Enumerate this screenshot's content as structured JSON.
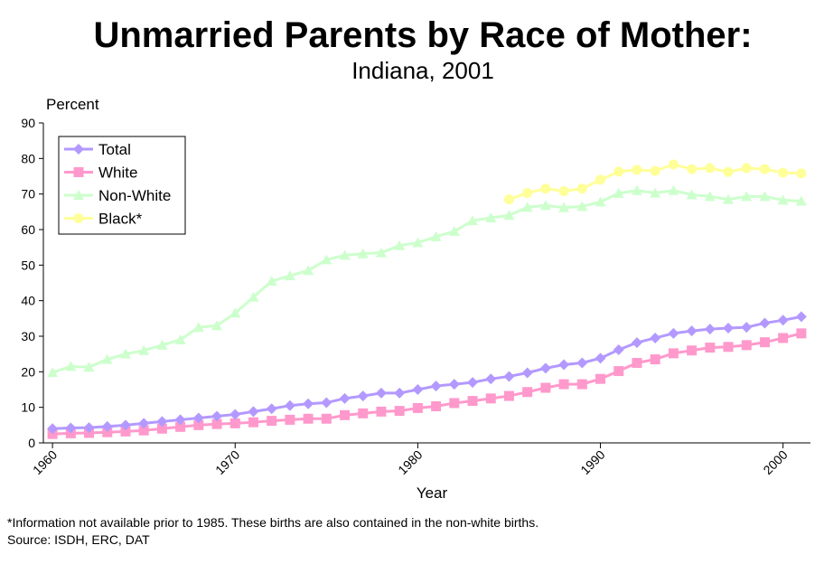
{
  "chart_data": {
    "type": "line",
    "title": "Unmarried Parents by Race of Mother:",
    "subtitle": "Indiana, 2001",
    "y_label": "Percent",
    "x_label": "Year",
    "footnotes": [
      "*Information not available prior to 1985.  These births are also contained in the non-white births.",
      "Source:  ISDH, ERC, DAT"
    ],
    "x": [
      1960,
      1961,
      1962,
      1963,
      1964,
      1965,
      1966,
      1967,
      1968,
      1969,
      1970,
      1971,
      1972,
      1973,
      1974,
      1975,
      1976,
      1977,
      1978,
      1979,
      1980,
      1981,
      1982,
      1983,
      1984,
      1985,
      1986,
      1987,
      1988,
      1989,
      1990,
      1991,
      1992,
      1993,
      1994,
      1995,
      1996,
      1997,
      1998,
      1999,
      2000,
      2001
    ],
    "xlim": [
      1959.5,
      2001.5
    ],
    "xticks": [
      1960,
      1970,
      1980,
      1990,
      2000
    ],
    "ylim": [
      0,
      90
    ],
    "yticks": [
      0,
      10,
      20,
      30,
      40,
      50,
      60,
      70,
      80,
      90
    ],
    "legend": "top-left",
    "series": [
      {
        "name": "Total",
        "color": "#b399ff",
        "marker": "diamond",
        "values": [
          4,
          4.2,
          4.3,
          4.6,
          5,
          5.5,
          6,
          6.5,
          7,
          7.5,
          8,
          8.8,
          9.6,
          10.5,
          11,
          11.3,
          12.5,
          13.2,
          14,
          14,
          15,
          16,
          16.5,
          17,
          18,
          18.7,
          19.7,
          21,
          22,
          22.5,
          23.8,
          26.2,
          28.2,
          29.5,
          30.8,
          31.5,
          32,
          32.3,
          32.5,
          33.7,
          34.5,
          35.5
        ]
      },
      {
        "name": "White",
        "color": "#ff99cc",
        "marker": "square",
        "values": [
          2.5,
          2.7,
          2.8,
          3,
          3.2,
          3.5,
          4,
          4.5,
          5,
          5.3,
          5.5,
          5.8,
          6.2,
          6.5,
          6.8,
          6.8,
          7.8,
          8.3,
          8.8,
          9,
          9.8,
          10.3,
          11.2,
          11.8,
          12.5,
          13.2,
          14.3,
          15.5,
          16.5,
          16.5,
          18,
          20.2,
          22.5,
          23.5,
          25.2,
          26,
          26.8,
          27,
          27.5,
          28.3,
          29.5,
          30.8
        ]
      },
      {
        "name": "Non-White",
        "color": "#ccffcc",
        "marker": "triangle",
        "values": [
          19.8,
          21.5,
          21.3,
          23.5,
          25,
          26,
          27.5,
          29,
          32.5,
          33,
          36.5,
          41,
          45.5,
          47,
          48.5,
          51.5,
          52.8,
          53.2,
          53.5,
          55.5,
          56.3,
          58,
          59.5,
          62.5,
          63.3,
          64,
          66.3,
          66.8,
          66.2,
          66.5,
          67.8,
          70.2,
          71,
          70.3,
          71,
          69.8,
          69.3,
          68.5,
          69.3,
          69.3,
          68.3,
          68
        ]
      },
      {
        "name": "Black*",
        "color": "#ffff99",
        "marker": "circle",
        "values": [
          null,
          null,
          null,
          null,
          null,
          null,
          null,
          null,
          null,
          null,
          null,
          null,
          null,
          null,
          null,
          null,
          null,
          null,
          null,
          null,
          null,
          null,
          null,
          null,
          null,
          68.5,
          70.3,
          71.5,
          70.8,
          71.5,
          74,
          76.3,
          76.8,
          76.5,
          78.3,
          77,
          77.3,
          76.2,
          77.3,
          77,
          76,
          75.8
        ]
      }
    ]
  }
}
